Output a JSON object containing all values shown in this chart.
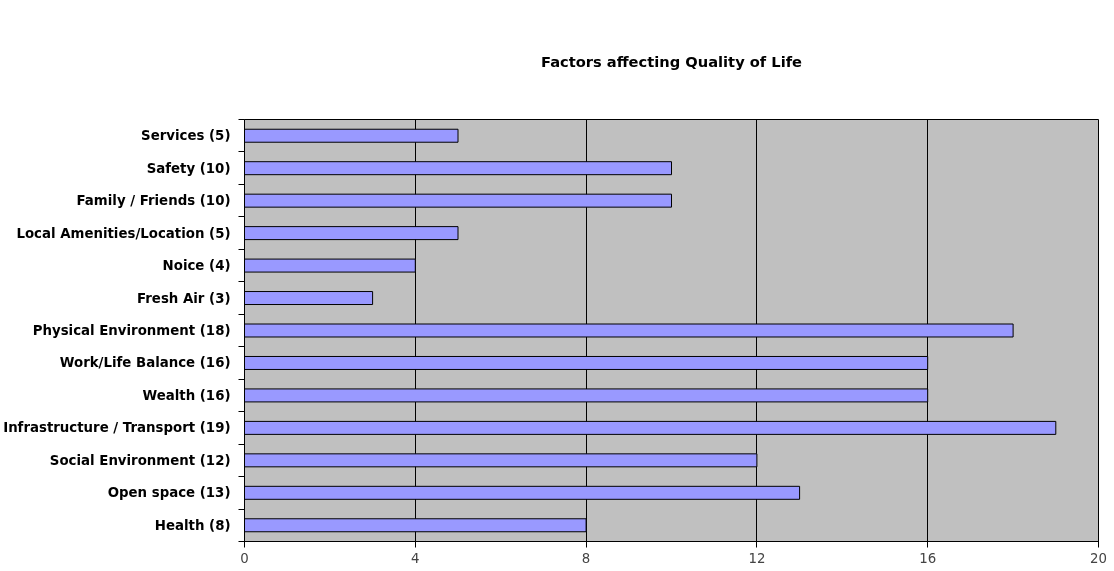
{
  "chart_data": {
    "type": "bar",
    "orientation": "horizontal",
    "title": "Factors affecting Quality of Life",
    "categories": [
      "Services (5)",
      "Safety (10)",
      "Family / Friends (10)",
      "Local Amenities/Location (5)",
      "Noice (4)",
      "Fresh Air (3)",
      "Physical Environment (18)",
      "Work/Life Balance (16)",
      "Wealth (16)",
      "Infrastructure / Transport (19)",
      "Social Environment (12)",
      "Open space (13)",
      "Health (8)"
    ],
    "values": [
      5,
      10,
      10,
      5,
      4,
      3,
      18,
      16,
      16,
      19,
      12,
      13,
      8
    ],
    "color": "#9999ff",
    "xlim": [
      0,
      20
    ],
    "xticks": [
      0,
      4,
      8,
      12,
      16,
      20
    ],
    "grid": "x"
  }
}
